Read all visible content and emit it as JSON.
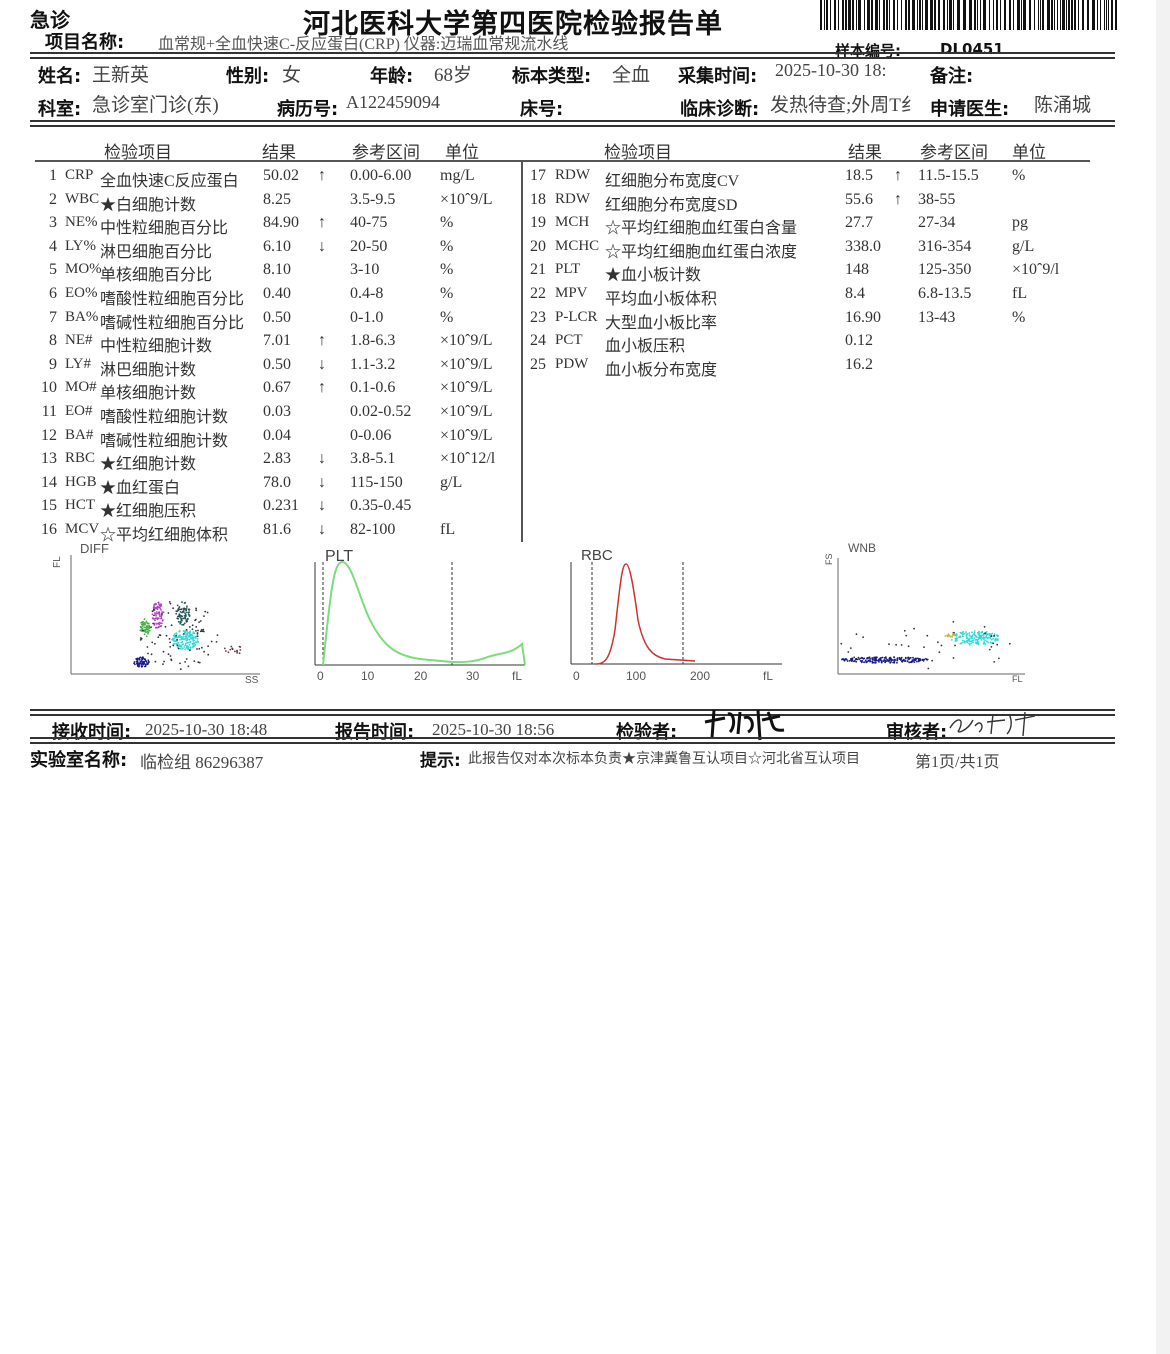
{
  "header": {
    "tag": "急诊",
    "title": "河北医科大学第四医院检验报告单",
    "item_label": "项目名称:",
    "item_value": "血常规+全血快速C-反应蛋白(CRP)  仪器:迈瑞血常规流水线",
    "sample_label": "样本编号:",
    "sample_value": "DL0451"
  },
  "patient": {
    "name_label": "姓名:",
    "name": "王新英",
    "sex_label": "性别:",
    "sex": "女",
    "age_label": "年龄:",
    "age": "68岁",
    "specimen_label": "标本类型:",
    "specimen": "全血",
    "collect_label": "采集时间:",
    "collect": "2025-10-30 18:",
    "remark_label": "备注:",
    "dept_label": "科室:",
    "dept": "急诊室门诊(东)",
    "record_label": "病历号:",
    "record": "A122459094",
    "bed_label": "床号:",
    "diagnosis_label": "临床诊断:",
    "diagnosis": "发热待查;外周T纟",
    "doctor_label": "申请医生:",
    "doctor": "陈涌城"
  },
  "table": {
    "headers": [
      "检验项目",
      "结果",
      "参考区间",
      "单位"
    ],
    "left": [
      {
        "no": "1",
        "code": "CRP",
        "name": "全血快速C反应蛋白",
        "result": "50.02",
        "flag": "↑",
        "ref": "0.00-6.00",
        "unit": "mg/L"
      },
      {
        "no": "2",
        "code": "WBC",
        "name": "★白细胞计数",
        "result": "8.25",
        "flag": "",
        "ref": "3.5-9.5",
        "unit": "×10ˆ9/L"
      },
      {
        "no": "3",
        "code": "NE%",
        "name": "中性粒细胞百分比",
        "result": "84.90",
        "flag": "↑",
        "ref": "40-75",
        "unit": "%"
      },
      {
        "no": "4",
        "code": "LY%",
        "name": "淋巴细胞百分比",
        "result": "6.10",
        "flag": "↓",
        "ref": "20-50",
        "unit": "%"
      },
      {
        "no": "5",
        "code": "MO%",
        "name": "单核细胞百分比",
        "result": "8.10",
        "flag": "",
        "ref": "3-10",
        "unit": "%"
      },
      {
        "no": "6",
        "code": "EO%",
        "name": "嗜酸性粒细胞百分比",
        "result": "0.40",
        "flag": "",
        "ref": "0.4-8",
        "unit": "%"
      },
      {
        "no": "7",
        "code": "BA%",
        "name": "嗜碱性粒细胞百分比",
        "result": "0.50",
        "flag": "",
        "ref": "0-1.0",
        "unit": "%"
      },
      {
        "no": "8",
        "code": "NE#",
        "name": "中性粒细胞计数",
        "result": "7.01",
        "flag": "↑",
        "ref": "1.8-6.3",
        "unit": "×10ˆ9/L"
      },
      {
        "no": "9",
        "code": "LY#",
        "name": "淋巴细胞计数",
        "result": "0.50",
        "flag": "↓",
        "ref": "1.1-3.2",
        "unit": "×10ˆ9/L"
      },
      {
        "no": "10",
        "code": "MO#",
        "name": "单核细胞计数",
        "result": "0.67",
        "flag": "↑",
        "ref": "0.1-0.6",
        "unit": "×10ˆ9/L"
      },
      {
        "no": "11",
        "code": "EO#",
        "name": "嗜酸性粒细胞计数",
        "result": "0.03",
        "flag": "",
        "ref": "0.02-0.52",
        "unit": "×10ˆ9/L"
      },
      {
        "no": "12",
        "code": "BA#",
        "name": "嗜碱性粒细胞计数",
        "result": "0.04",
        "flag": "",
        "ref": "0-0.06",
        "unit": "×10ˆ9/L"
      },
      {
        "no": "13",
        "code": "RBC",
        "name": "★红细胞计数",
        "result": "2.83",
        "flag": "↓",
        "ref": "3.8-5.1",
        "unit": "×10ˆ12/l"
      },
      {
        "no": "14",
        "code": "HGB",
        "name": "★血红蛋白",
        "result": "78.0",
        "flag": "↓",
        "ref": "115-150",
        "unit": "g/L"
      },
      {
        "no": "15",
        "code": "HCT",
        "name": "★红细胞压积",
        "result": "0.231",
        "flag": "↓",
        "ref": "0.35-0.45",
        "unit": ""
      },
      {
        "no": "16",
        "code": "MCV",
        "name": "☆平均红细胞体积",
        "result": "81.6",
        "flag": "↓",
        "ref": "82-100",
        "unit": "fL"
      }
    ],
    "right": [
      {
        "no": "17",
        "code": "RDW",
        "name": "红细胞分布宽度CV",
        "result": "18.5",
        "flag": "↑",
        "ref": "11.5-15.5",
        "unit": "%"
      },
      {
        "no": "18",
        "code": "RDW",
        "name": "红细胞分布宽度SD",
        "result": "55.6",
        "flag": "↑",
        "ref": "38-55",
        "unit": ""
      },
      {
        "no": "19",
        "code": "MCH",
        "name": "☆平均红细胞血红蛋白含量",
        "result": "27.7",
        "flag": "",
        "ref": "27-34",
        "unit": "pg"
      },
      {
        "no": "20",
        "code": "MCHC",
        "name": "☆平均红细胞血红蛋白浓度",
        "result": "338.0",
        "flag": "",
        "ref": "316-354",
        "unit": "g/L"
      },
      {
        "no": "21",
        "code": "PLT",
        "name": "★血小板计数",
        "result": "148",
        "flag": "",
        "ref": "125-350",
        "unit": "×10ˆ9/l"
      },
      {
        "no": "22",
        "code": "MPV",
        "name": "平均血小板体积",
        "result": "8.4",
        "flag": "",
        "ref": "6.8-13.5",
        "unit": "fL"
      },
      {
        "no": "23",
        "code": "P-LCR",
        "name": "大型血小板比率",
        "result": "16.90",
        "flag": "",
        "ref": "13-43",
        "unit": "%"
      },
      {
        "no": "24",
        "code": "PCT",
        "name": "血小板压积",
        "result": "0.12",
        "flag": "",
        "ref": "",
        "unit": ""
      },
      {
        "no": "25",
        "code": "PDW",
        "name": "血小板分布宽度",
        "result": "16.2",
        "flag": "",
        "ref": "",
        "unit": ""
      }
    ]
  },
  "graphs": {
    "diff": {
      "title": "DIFF",
      "ylabel": "FL",
      "xlabel": "SS"
    },
    "plt": {
      "title": "PLT",
      "ticks": [
        "0",
        "10",
        "20",
        "30",
        "fL"
      ],
      "color": "#7ddc7d"
    },
    "rbc": {
      "title": "RBC",
      "ticks": [
        "0",
        "100",
        "200",
        "fL"
      ],
      "color": "#cc3333"
    },
    "wnb": {
      "title": "WNB",
      "ylabel": "FS",
      "xlabel": "FL"
    }
  },
  "footer": {
    "receive_label": "接收时间:",
    "receive": "2025-10-30 18:48",
    "report_label": "报告时间:",
    "report": "2025-10-30 18:56",
    "tester_label": "检验者:",
    "reviewer_label": "审核者:",
    "lab_label": "实验室名称:",
    "lab": "临检组 86296387",
    "note_label": "提示:",
    "note": "此报告仅对本次标本负责★京津冀鲁互认项目☆河北省互认项目",
    "page": "第1页/共1页"
  }
}
